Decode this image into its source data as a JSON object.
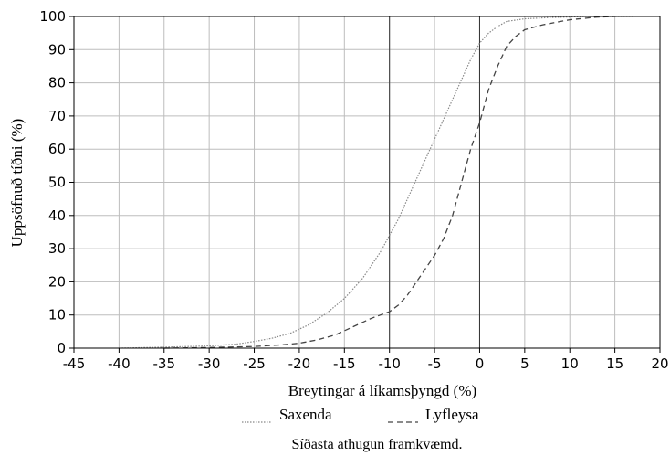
{
  "chart_data": {
    "type": "line",
    "title": "",
    "xlabel": "Breytingar á líkamsþyngd (%)",
    "ylabel": "Uppsöfnuð tíðni (%)",
    "xlim": [
      -45,
      20
    ],
    "ylim": [
      0,
      100
    ],
    "xticks": [
      -45,
      -40,
      -35,
      -30,
      -25,
      -20,
      -15,
      -10,
      -5,
      0,
      5,
      10,
      15,
      20
    ],
    "yticks": [
      0,
      10,
      20,
      30,
      40,
      50,
      60,
      70,
      80,
      90,
      100
    ],
    "grid": true,
    "legend_position": "bottom",
    "footnote": "Síðasta athugun framkvæmd.",
    "series": [
      {
        "name": "Saxenda",
        "style": "dotted",
        "color": "#888888",
        "x": [
          -40,
          -35,
          -30,
          -27,
          -25,
          -23,
          -21,
          -19,
          -17,
          -15,
          -13,
          -11,
          -10,
          -9,
          -8,
          -7,
          -6,
          -5,
          -4,
          -3,
          -2,
          -1,
          0,
          1,
          2,
          3,
          5,
          8,
          12,
          17
        ],
        "y": [
          0,
          0.3,
          0.7,
          1.2,
          2,
          3,
          4.5,
          7,
          10.5,
          15,
          21,
          29,
          34,
          39,
          45,
          51,
          57,
          63,
          69,
          75,
          81,
          87,
          92,
          95,
          97,
          98.5,
          99.3,
          99.7,
          100,
          100
        ]
      },
      {
        "name": "Lyfleysa",
        "style": "dashed",
        "color": "#444444",
        "x": [
          -35,
          -30,
          -25,
          -22,
          -20,
          -18,
          -16,
          -14,
          -12,
          -10,
          -9,
          -8,
          -7,
          -6,
          -5,
          -4,
          -3,
          -2,
          -1,
          0,
          1,
          2,
          3,
          4,
          5,
          7,
          10,
          13,
          15
        ],
        "y": [
          0,
          0.2,
          0.5,
          1,
          1.5,
          2.5,
          4,
          6.5,
          9,
          11,
          13,
          16,
          20,
          24,
          28,
          33,
          40,
          50,
          60,
          68,
          78,
          85,
          91,
          94,
          96,
          97.5,
          99,
          99.8,
          100
        ]
      }
    ]
  }
}
